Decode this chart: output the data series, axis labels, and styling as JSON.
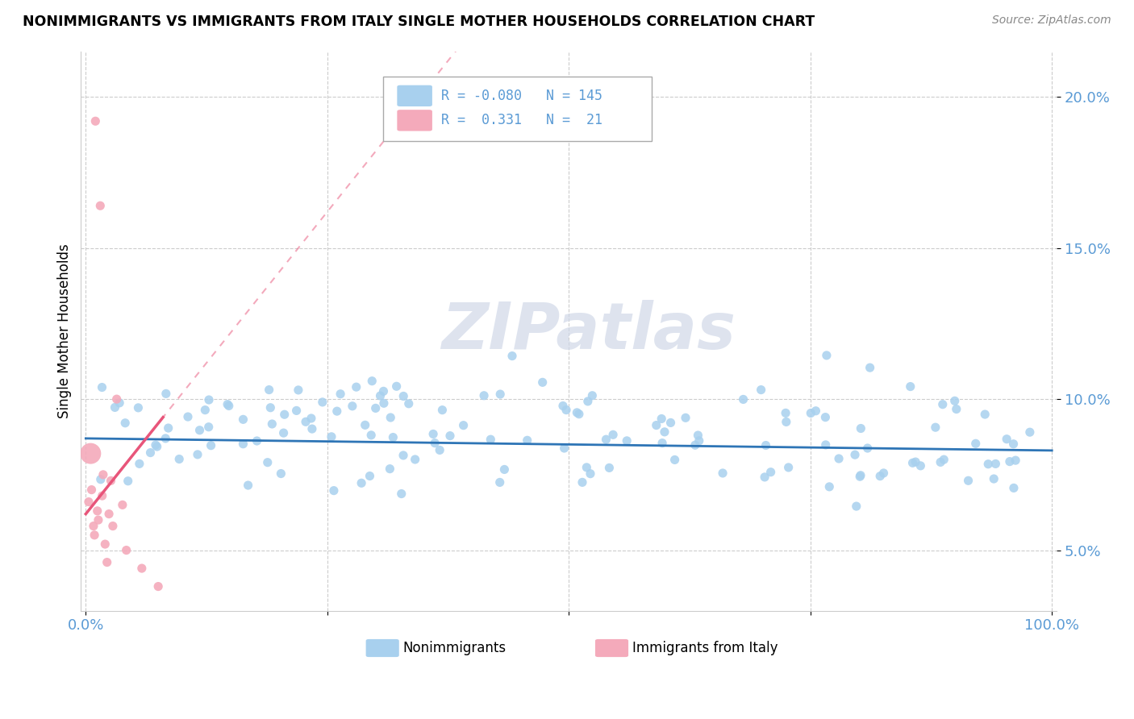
{
  "title": "NONIMMIGRANTS VS IMMIGRANTS FROM ITALY SINGLE MOTHER HOUSEHOLDS CORRELATION CHART",
  "source": "Source: ZipAtlas.com",
  "ylabel": "Single Mother Households",
  "legend_label1": "Nonimmigrants",
  "legend_label2": "Immigrants from Italy",
  "R1": -0.08,
  "N1": 145,
  "R2": 0.331,
  "N2": 21,
  "nonimm_color": "#A8D0EE",
  "imm_color": "#F4AABB",
  "trend_nonimm_color": "#2E75B6",
  "trend_imm_color": "#E8557A",
  "watermark": "ZIPatlas",
  "ylim": [
    0.03,
    0.215
  ],
  "xlim": [
    -0.005,
    1.005
  ],
  "yticks": [
    0.05,
    0.1,
    0.15,
    0.2
  ],
  "ytick_labels": [
    "5.0%",
    "10.0%",
    "15.0%",
    "20.0%"
  ],
  "grid_color": "#CCCCCC",
  "bg_color": "#FFFFFF",
  "tick_color": "#5B9BD5"
}
